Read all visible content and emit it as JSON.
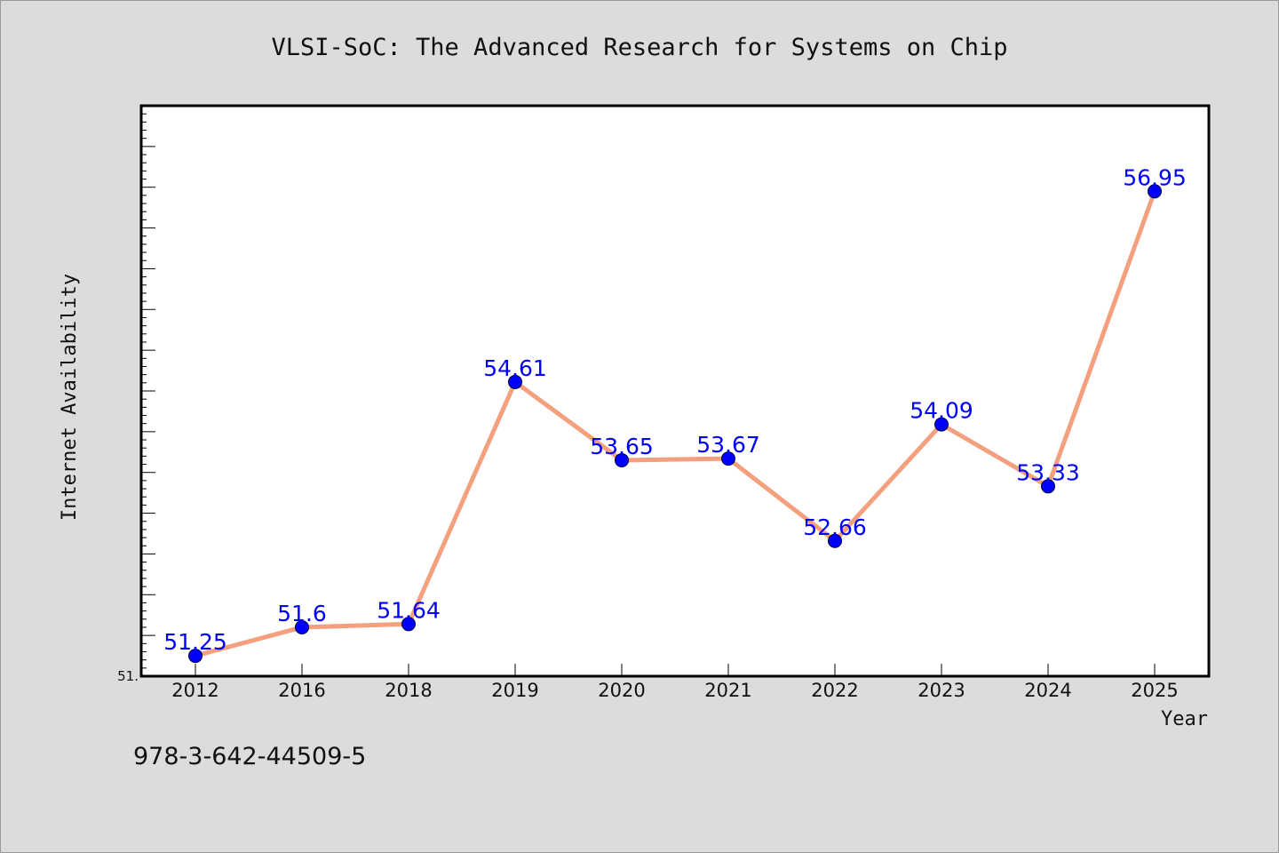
{
  "chart_data": {
    "type": "line",
    "title": "VLSI-SoC: The Advanced Research for Systems on Chip",
    "xlabel": "Year",
    "ylabel": "Internet Availability",
    "categories": [
      "2012",
      "2016",
      "2018",
      "2019",
      "2020",
      "2021",
      "2022",
      "2023",
      "2024",
      "2025"
    ],
    "series": [
      {
        "values": [
          51.25,
          51.6,
          51.64,
          54.61,
          53.65,
          53.67,
          52.66,
          54.09,
          53.33,
          56.95
        ],
        "line_color": "#f4a07e",
        "marker_color": "#0000ff"
      }
    ],
    "data_labels": [
      "51.25",
      "51.6",
      "51.64",
      "54.61",
      "53.65",
      "53.67",
      "52.66",
      "54.09",
      "53.33",
      "56.95"
    ],
    "y_tick_labels": [
      "51."
    ],
    "ylim": [
      51,
      58
    ],
    "y_minor_step": 0.1,
    "y_major_step": 0.5,
    "grid": false,
    "label_color": "#0000ff"
  },
  "footer": {
    "code": "978-3-642-44509-5"
  }
}
